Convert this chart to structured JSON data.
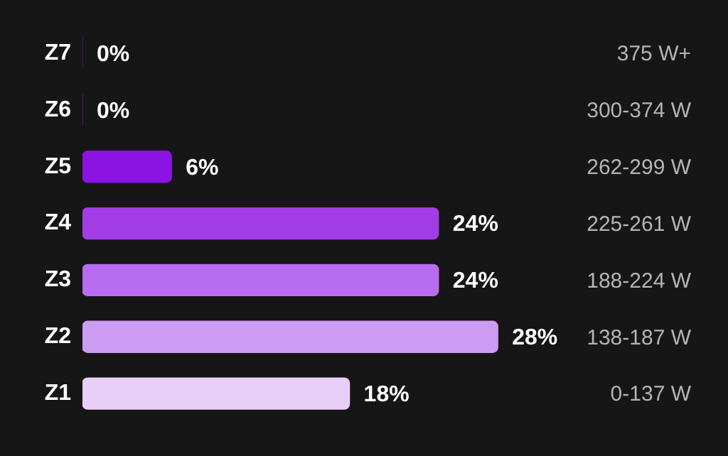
{
  "chart_data": {
    "type": "bar",
    "orientation": "horizontal",
    "categories": [
      "Z7",
      "Z6",
      "Z5",
      "Z4",
      "Z3",
      "Z2",
      "Z1"
    ],
    "values": [
      0,
      0,
      6,
      24,
      24,
      28,
      18
    ],
    "colors": [
      "#5c0f9e",
      "#6c12bd",
      "#8c14e2",
      "#a23de6",
      "#b86df0",
      "#cc9bf2",
      "#e8cff8"
    ],
    "value_labels": [
      "0%",
      "0%",
      "6%",
      "24%",
      "24%",
      "28%",
      "18%"
    ],
    "annotations": [
      "375 W+",
      "300-374 W",
      "262-299 W",
      "225-261 W",
      "188-224 W",
      "138-187 W",
      "0-137 W"
    ],
    "legend": false
  }
}
